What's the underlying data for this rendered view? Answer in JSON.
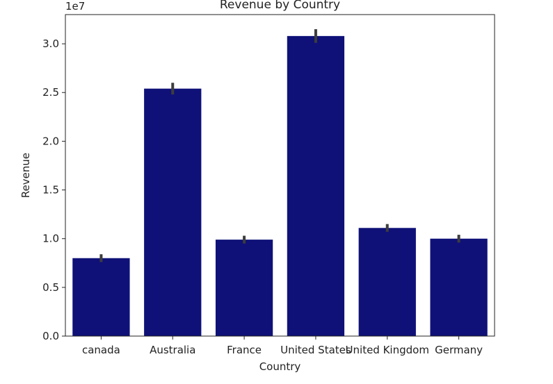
{
  "chart_data": {
    "type": "bar",
    "title": "Revenue by Country",
    "xlabel": "Country",
    "ylabel": "Revenue",
    "y_scale_label": "1e7",
    "categories": [
      "canada",
      "Australia",
      "France",
      "United States",
      "United Kingdom",
      "Germany"
    ],
    "values": [
      0.8,
      2.54,
      0.99,
      3.08,
      1.11,
      1.0
    ],
    "error_low": [
      0.76,
      2.48,
      0.95,
      3.01,
      1.07,
      0.96
    ],
    "error_high": [
      0.84,
      2.6,
      1.03,
      3.15,
      1.15,
      1.04
    ],
    "ylim": [
      0,
      3.3
    ],
    "yticks": [
      0.0,
      0.5,
      1.0,
      1.5,
      2.0,
      2.5,
      3.0
    ],
    "ytick_labels": [
      "0.0",
      "0.5",
      "1.0",
      "1.5",
      "2.0",
      "2.5",
      "3.0"
    ],
    "grid": false,
    "legend": "none",
    "colors": {
      "bar": "#0F1178",
      "errorbar": "#3d3d3d",
      "axis": "#222222"
    }
  }
}
